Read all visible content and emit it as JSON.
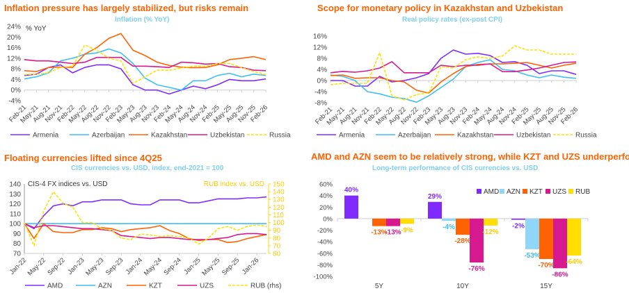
{
  "chart_data": [
    {
      "type": "line",
      "title": "Inflation pressure has largely stabilized, but risks remain",
      "subtitle": "Inflation (% YoY)",
      "ylabel": "% YoY",
      "ylim": [
        -4,
        24
      ],
      "yticks": [
        "-4%",
        "0%",
        "4%",
        "8%",
        "12%",
        "16%",
        "20%",
        "24%"
      ],
      "x": [
        "Feb-21",
        "May-21",
        "Aug-21",
        "Nov-21",
        "Feb-22",
        "May-22",
        "Aug-22",
        "Nov-22",
        "Feb-23",
        "May-23",
        "Aug-23",
        "Nov-23",
        "Feb-24",
        "May-24",
        "Aug-24",
        "Nov-24",
        "Feb-25",
        "May-25",
        "Aug-25",
        "Nov-25",
        "Feb-26"
      ],
      "legend": "bottom",
      "series": [
        {
          "name": "Armenia",
          "color": "#7F2BFF",
          "dashed": false,
          "values": [
            5.5,
            6,
            8.5,
            9.5,
            6.5,
            8.5,
            9.5,
            9.5,
            8,
            2,
            0,
            0,
            -1.5,
            0,
            1.5,
            0.5,
            2,
            4,
            3.5,
            3.5,
            4.2
          ]
        },
        {
          "name": "Azerbaijan",
          "color": "#3DBEF5",
          "dashed": false,
          "values": [
            4.2,
            5,
            6.5,
            11,
            12,
            13.5,
            14,
            15.5,
            14,
            10,
            4.5,
            2,
            1,
            0,
            3.5,
            3.5,
            5.5,
            6.3,
            5,
            6,
            5.5
          ]
        },
        {
          "name": "Kazakhstan",
          "color": "#FF6200",
          "dashed": false,
          "values": [
            7.3,
            7,
            8.5,
            8.7,
            8.5,
            13.5,
            16,
            19.5,
            21.3,
            15,
            13,
            10.5,
            9.3,
            8.6,
            8.4,
            8.5,
            9.5,
            11.5,
            12,
            12.6,
            11.5
          ]
        },
        {
          "name": "Uzbekistan",
          "color": "#D6198E",
          "dashed": false,
          "values": [
            11.5,
            11,
            11,
            10.5,
            10,
            10.5,
            12.3,
            12.3,
            12.3,
            9,
            9,
            8.8,
            8.5,
            10.5,
            10.3,
            9.8,
            10,
            8.8,
            8.5,
            7.5,
            7.3
          ]
        },
        {
          "name": "Russia",
          "color": "#FFE000",
          "dashed": true,
          "values": [
            5.8,
            6,
            6.5,
            8.5,
            9,
            17,
            15,
            12,
            11,
            2.5,
            5,
            7.5,
            7.5,
            8.3,
            9,
            9,
            10,
            10,
            8.5,
            7,
            5.8
          ]
        }
      ]
    },
    {
      "type": "line",
      "title": "Scope for monetary policy in Kazakhstan and Uzbekistan",
      "subtitle": "Real policy rates (ex-post CPI)",
      "ylim": [
        -8,
        16
      ],
      "yticks": [
        "-8%",
        "-4%",
        "0%",
        "4%",
        "8%",
        "12%",
        "16%"
      ],
      "x": [
        "Feb-21",
        "May-21",
        "Aug-21",
        "Nov-21",
        "Feb-22",
        "May-22",
        "Aug-22",
        "Nov-22",
        "Feb-23",
        "May-23",
        "Aug-23",
        "Nov-23",
        "Feb-24",
        "May-24",
        "Aug-24",
        "Nov-24",
        "Feb-25",
        "May-25",
        "Aug-25",
        "Nov-25",
        "Feb-26"
      ],
      "legend": "bottom",
      "series": [
        {
          "name": "Armenia",
          "color": "#7F2BFF",
          "dashed": false,
          "values": [
            0,
            0,
            -2,
            -2,
            1.5,
            -0.5,
            0,
            1,
            2.5,
            8,
            11,
            9.5,
            9.8,
            9,
            6.5,
            6.8,
            5.5,
            2.5,
            3.5,
            3.5,
            2.2
          ]
        },
        {
          "name": "Azerbaijan",
          "color": "#3DBEF5",
          "dashed": false,
          "values": [
            2,
            1.5,
            0,
            -4,
            -4.8,
            -6,
            -6.5,
            -7.8,
            -5.5,
            -2.5,
            0.5,
            5,
            6.5,
            7.5,
            4,
            3.5,
            2,
            1,
            2,
            1.2,
            0.8
          ]
        },
        {
          "name": "Kazakhstan",
          "color": "#FF6200",
          "dashed": false,
          "values": [
            1.8,
            2,
            0.8,
            1,
            1,
            0,
            -0.5,
            -3.5,
            -4.5,
            -0.5,
            2.5,
            5,
            5.8,
            6,
            6,
            6.2,
            6.5,
            5.5,
            4.5,
            5.5,
            6.2
          ]
        },
        {
          "name": "Uzbekistan",
          "color": "#D6198E",
          "dashed": false,
          "values": [
            2.8,
            3.3,
            3,
            3.5,
            4.5,
            6.8,
            2.8,
            2.8,
            2.8,
            5.5,
            5,
            5.5,
            5.5,
            6,
            3.2,
            3.2,
            3.8,
            4.5,
            5.5,
            6.5,
            6.7
          ]
        },
        {
          "name": "Russia",
          "color": "#FFE000",
          "dashed": true,
          "values": [
            -1.5,
            -1,
            -1,
            -1,
            10,
            -5.5,
            -7,
            -5,
            -4.5,
            5,
            4.5,
            7.5,
            8.5,
            8,
            8.8,
            12.5,
            11,
            11,
            9.5,
            9.5,
            9.5
          ]
        }
      ]
    },
    {
      "type": "line",
      "title": "Floating currencies lifted since 4Q25",
      "subtitle": "CIS currencies vs. USD, index, end-2021 = 100",
      "left_axis_label": "CIS-4 FX indices vs. USD",
      "right_axis_label": "RUB index vs. USD",
      "ylim": [
        70,
        140
      ],
      "yticks": [
        "70",
        "80",
        "90",
        "100",
        "110",
        "120",
        "130",
        "140"
      ],
      "ylim_right": [
        60,
        150
      ],
      "yticks_right": [
        "60",
        "70",
        "80",
        "90",
        "100",
        "110",
        "120",
        "130",
        "140",
        "150"
      ],
      "xticks": [
        "Jan-22",
        "May-22",
        "Sep-22",
        "Jan-23",
        "May-23",
        "Sep-23",
        "Jan-24",
        "May-24",
        "Sep-24",
        "Jan-25",
        "May-25",
        "Sep-25",
        "Jan-26"
      ],
      "x": [
        "Jan-22",
        "Mar-22",
        "May-22",
        "Jul-22",
        "Sep-22",
        "Nov-22",
        "Jan-23",
        "Mar-23",
        "May-23",
        "Jul-23",
        "Sep-23",
        "Nov-23",
        "Jan-24",
        "Mar-24",
        "May-24",
        "Jul-24",
        "Sep-24",
        "Nov-24",
        "Jan-25",
        "Mar-25",
        "May-25",
        "Jul-25",
        "Sep-25",
        "Nov-25",
        "Jan-26",
        "Mar-26"
      ],
      "legend": "bottom",
      "series": [
        {
          "name": "AMD",
          "color": "#7F2BFF",
          "dashed": false,
          "axis": "left",
          "values": [
            100,
            95,
            108,
            118,
            120,
            118,
            122,
            122,
            124,
            124,
            124,
            120,
            119,
            119,
            124,
            124,
            124,
            121,
            121,
            123,
            125,
            125,
            125,
            126,
            126,
            127
          ]
        },
        {
          "name": "AZN",
          "color": "#3DBEF5",
          "dashed": false,
          "axis": "left",
          "values": [
            100,
            100,
            100,
            100,
            100,
            100,
            100,
            100,
            100,
            100,
            100,
            100,
            100,
            100,
            100,
            100,
            100,
            100,
            100,
            100,
            100,
            100,
            100,
            100,
            100,
            100
          ]
        },
        {
          "name": "KZT",
          "color": "#FF6200",
          "dashed": false,
          "axis": "left",
          "values": [
            100,
            85,
            100,
            92,
            91,
            91,
            94,
            94,
            96,
            95,
            92,
            94,
            95,
            96,
            98,
            93,
            90,
            85,
            83,
            84,
            84,
            81,
            82,
            85,
            87,
            89
          ]
        },
        {
          "name": "UZS",
          "color": "#D6198E",
          "dashed": false,
          "axis": "left",
          "values": [
            100,
            96,
            98,
            98,
            97,
            96,
            95,
            95,
            94,
            93,
            88,
            87,
            86,
            85,
            86,
            86,
            85,
            84,
            84,
            84,
            85,
            86,
            89,
            90,
            90,
            89
          ]
        },
        {
          "name": "RUB (rhs)",
          "color": "#FFE000",
          "dashed": true,
          "axis": "right",
          "values": [
            100,
            70,
            115,
            140,
            125,
            120,
            100,
            100,
            92,
            90,
            80,
            78,
            85,
            84,
            82,
            83,
            82,
            80,
            72,
            80,
            92,
            95,
            90,
            95,
            97,
            95
          ]
        }
      ]
    },
    {
      "type": "bar",
      "title": "AMD and AZN seem to be relatively strong, while KZT and UZS underperform",
      "subtitle": "Long-term performance of CIS currencies vs. USD",
      "categories": [
        "5Y",
        "10Y",
        "15Y"
      ],
      "ylim": [
        -100,
        60
      ],
      "yticks": [
        "-100%",
        "-80%",
        "-60%",
        "-40%",
        "-20%",
        "0%",
        "20%",
        "40%",
        "60%"
      ],
      "legend": "top-right",
      "series": [
        {
          "name": "AMD",
          "color": "#7F2BFF",
          "label_color": "#7F2BFF",
          "values": [
            40,
            29,
            -2
          ],
          "labels": [
            "40%",
            "29%",
            "-2%"
          ]
        },
        {
          "name": "AZN",
          "color": "#8FD6F8",
          "label_color": "#3DBEF5",
          "values": [
            null,
            -4,
            -53
          ],
          "labels": [
            "",
            "-4%",
            "-53%"
          ]
        },
        {
          "name": "KZT",
          "color": "#FF6200",
          "label_color": "#FF6200",
          "values": [
            -13,
            -28,
            -70
          ],
          "labels": [
            "-13%",
            "-28%",
            "-70%"
          ]
        },
        {
          "name": "UZS",
          "color": "#D6198E",
          "label_color": "#D6198E",
          "values": [
            -13,
            -76,
            -86
          ],
          "labels": [
            "-13%",
            "-76%",
            "-86%"
          ]
        },
        {
          "name": "RUB",
          "color": "#FFDD00",
          "label_color": "#FFCC00",
          "values": [
            -9,
            -12,
            -64
          ],
          "labels": [
            "-9%",
            "-12%",
            "-64%"
          ]
        }
      ]
    }
  ]
}
